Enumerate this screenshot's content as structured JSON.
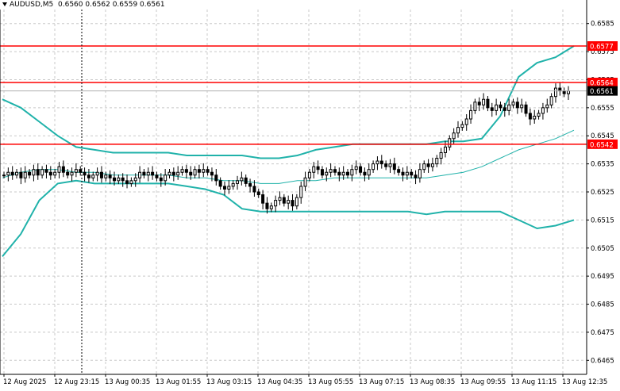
{
  "header": {
    "symbol": "AUDUSD,M5",
    "ohlc": "0.6560 0.6562 0.6559 0.6561"
  },
  "colors": {
    "background": "#ffffff",
    "grid": "#c8c8c8",
    "candle": "#000000",
    "bollinger_band": "#20b2aa",
    "moving_average": "#20b2aa",
    "level_line": "#ff0000",
    "price_tag_level": "#ff0000",
    "price_tag_current": "#000000"
  },
  "chart_data": {
    "type": "candlestick",
    "title": "AUDUSD,M5",
    "ylim": [
      0.646,
      0.659
    ],
    "grid": true,
    "y_ticks": [
      "0.6585",
      "0.6575",
      "0.6565",
      "0.6555",
      "0.6545",
      "0.6535",
      "0.6525",
      "0.6515",
      "0.6505",
      "0.6495",
      "0.6485",
      "0.6475",
      "0.6465"
    ],
    "x_labels": [
      "12 Aug 2025",
      "12 Aug 23:15",
      "13 Aug 00:35",
      "13 Aug 01:55",
      "13 Aug 03:15",
      "13 Aug 04:35",
      "13 Aug 05:55",
      "13 Aug 07:15",
      "13 Aug 08:35",
      "13 Aug 09:55",
      "13 Aug 11:15",
      "13 Aug 12:35"
    ],
    "levels": [
      {
        "price": 0.6577,
        "label": "0.6577"
      },
      {
        "price": 0.6564,
        "label": "0.6564"
      },
      {
        "price": 0.6542,
        "label": "0.6542"
      }
    ],
    "current_price": {
      "price": 0.6561,
      "label": "0.6561"
    },
    "close_series": [
      0.6531,
      0.6532,
      0.6531,
      0.6532,
      0.653,
      0.6532,
      0.6531,
      0.6533,
      0.6531,
      0.6533,
      0.6532,
      0.6531,
      0.6532,
      0.6534,
      0.6532,
      0.6531,
      0.6532,
      0.6533,
      0.6532,
      0.6531,
      0.653,
      0.6531,
      0.6532,
      0.653,
      0.6531,
      0.653,
      0.6529,
      0.653,
      0.6529,
      0.6528,
      0.6529,
      0.653,
      0.6532,
      0.6531,
      0.6532,
      0.6531,
      0.653,
      0.6529,
      0.6531,
      0.6532,
      0.6531,
      0.6532,
      0.6533,
      0.6532,
      0.6531,
      0.6533,
      0.6532,
      0.6533,
      0.6532,
      0.6531,
      0.6529,
      0.6527,
      0.6526,
      0.6527,
      0.6528,
      0.6529,
      0.653,
      0.6528,
      0.6527,
      0.6525,
      0.6524,
      0.6521,
      0.6519,
      0.652,
      0.6522,
      0.6523,
      0.6521,
      0.6522,
      0.652,
      0.6523,
      0.6527,
      0.653,
      0.6532,
      0.6534,
      0.6533,
      0.6531,
      0.6532,
      0.6533,
      0.6532,
      0.6531,
      0.6532,
      0.6531,
      0.6533,
      0.6534,
      0.6532,
      0.6531,
      0.6533,
      0.6535,
      0.6536,
      0.6535,
      0.6534,
      0.6535,
      0.6533,
      0.6532,
      0.6531,
      0.6532,
      0.6531,
      0.653,
      0.6533,
      0.6535,
      0.6534,
      0.6535,
      0.6537,
      0.6539,
      0.6541,
      0.6544,
      0.6546,
      0.6548,
      0.6549,
      0.6551,
      0.6554,
      0.6557,
      0.6556,
      0.6558,
      0.6555,
      0.6554,
      0.6556,
      0.6555,
      0.6554,
      0.6556,
      0.6557,
      0.6555,
      0.6556,
      0.6553,
      0.6551,
      0.6552,
      0.6553,
      0.6555,
      0.6556,
      0.6559,
      0.6562,
      0.6561,
      0.656,
      0.6561
    ],
    "series": [
      {
        "name": "",
        "role": "upper_band",
        "values": [
          0.6558,
          0.6555,
          0.655,
          0.6545,
          0.6541,
          0.654,
          0.6539,
          0.6539,
          0.6539,
          0.6539,
          0.6538,
          0.6538,
          0.6538,
          0.6538,
          0.6537,
          0.6537,
          0.6538,
          0.654,
          0.6541,
          0.6542,
          0.6542,
          0.6542,
          0.6542,
          0.6542,
          0.6543,
          0.6543,
          0.6544,
          0.6552,
          0.6566,
          0.6571,
          0.6573,
          0.6577
        ]
      },
      {
        "name": "",
        "role": "middle_ma",
        "values": [
          0.653,
          0.6532,
          0.6533,
          0.6533,
          0.6532,
          0.6532,
          0.6531,
          0.6531,
          0.6531,
          0.6531,
          0.653,
          0.653,
          0.6529,
          0.6529,
          0.6528,
          0.6528,
          0.6529,
          0.6529,
          0.653,
          0.653,
          0.653,
          0.653,
          0.653,
          0.653,
          0.6531,
          0.6532,
          0.6534,
          0.6537,
          0.654,
          0.6542,
          0.6544,
          0.6547
        ]
      },
      {
        "name": "",
        "role": "lower_band",
        "values": [
          0.6502,
          0.651,
          0.6522,
          0.6528,
          0.6529,
          0.6528,
          0.6528,
          0.6528,
          0.6528,
          0.6528,
          0.6527,
          0.6526,
          0.6524,
          0.6519,
          0.6518,
          0.6518,
          0.6518,
          0.6518,
          0.6518,
          0.6518,
          0.6518,
          0.6518,
          0.6518,
          0.6517,
          0.6518,
          0.6518,
          0.6518,
          0.6518,
          0.6515,
          0.6512,
          0.6513,
          0.6515
        ]
      }
    ]
  }
}
